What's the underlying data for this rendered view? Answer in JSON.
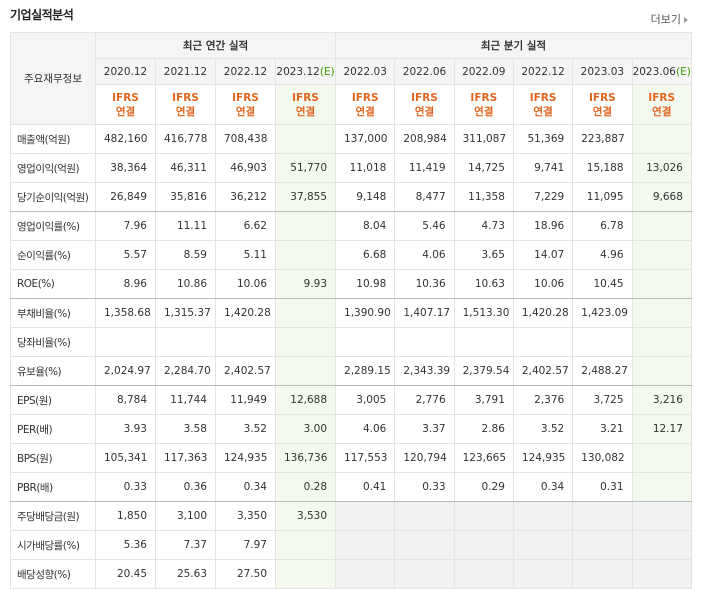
{
  "header": {
    "title": "기업실적분석",
    "more": "더보기"
  },
  "table": {
    "corner": "주요재무정보",
    "groups": [
      "최근 연간 실적",
      "최근 분기 실적"
    ],
    "columns": [
      {
        "date": "2020.12"
      },
      {
        "date": "2021.12"
      },
      {
        "date": "2022.12"
      },
      {
        "date": "2023.12",
        "est": "(E)"
      },
      {
        "date": "2022.03"
      },
      {
        "date": "2022.06"
      },
      {
        "date": "2022.09"
      },
      {
        "date": "2022.12"
      },
      {
        "date": "2023.03"
      },
      {
        "date": "2023.06",
        "est": "(E)"
      }
    ],
    "standard": [
      {
        "std": "IFRS",
        "basis": "연결"
      },
      {
        "std": "IFRS",
        "basis": "연결"
      },
      {
        "std": "IFRS",
        "basis": "연결"
      },
      {
        "std": "IFRS",
        "basis": "연결"
      },
      {
        "std": "IFRS",
        "basis": "연결"
      },
      {
        "std": "IFRS",
        "basis": "연결"
      },
      {
        "std": "IFRS",
        "basis": "연결"
      },
      {
        "std": "IFRS",
        "basis": "연결"
      },
      {
        "std": "IFRS",
        "basis": "연결"
      },
      {
        "std": "IFRS",
        "basis": "연결"
      }
    ],
    "rows": [
      {
        "label": "매출액(억원)",
        "cells": [
          "482,160",
          "416,778",
          "708,438",
          null,
          "137,000",
          "208,984",
          "311,087",
          "51,369",
          "223,887",
          null
        ]
      },
      {
        "label": "영업이익(억원)",
        "cells": [
          "38,364",
          "46,311",
          "46,903",
          "51,770",
          "11,018",
          "11,419",
          "14,725",
          "9,741",
          "15,188",
          "13,026"
        ]
      },
      {
        "label": "당기순이익(억원)",
        "cells": [
          "26,849",
          "35,816",
          "36,212",
          "37,855",
          "9,148",
          "8,477",
          "11,358",
          "7,229",
          "11,095",
          "9,668"
        ]
      },
      {
        "label": "영업이익률(%)",
        "cells": [
          "7.96",
          "11.11",
          "6.62",
          null,
          "8.04",
          "5.46",
          "4.73",
          "18.96",
          "6.78",
          null
        ]
      },
      {
        "label": "순이익률(%)",
        "cells": [
          "5.57",
          "8.59",
          "5.11",
          null,
          "6.68",
          "4.06",
          "3.65",
          "14.07",
          "4.96",
          null
        ]
      },
      {
        "label": "ROE(%)",
        "cells": [
          "8.96",
          "10.86",
          "10.06",
          "9.93",
          "10.98",
          "10.36",
          "10.63",
          "10.06",
          "10.45",
          null
        ]
      },
      {
        "label": "부채비율(%)",
        "cells": [
          "1,358.68",
          "1,315.37",
          "1,420.28",
          null,
          "1,390.90",
          "1,407.17",
          "1,513.30",
          "1,420.28",
          "1,423.09",
          null
        ]
      },
      {
        "label": "당좌비율(%)",
        "cells": [
          null,
          null,
          null,
          null,
          null,
          null,
          null,
          null,
          null,
          null
        ]
      },
      {
        "label": "유보율(%)",
        "cells": [
          "2,024.97",
          "2,284.70",
          "2,402.57",
          null,
          "2,289.15",
          "2,343.39",
          "2,379.54",
          "2,402.57",
          "2,488.27",
          null
        ]
      },
      {
        "label": "EPS(원)",
        "cells": [
          "8,784",
          "11,744",
          "11,949",
          "12,688",
          "3,005",
          "2,776",
          "3,791",
          "2,376",
          "3,725",
          "3,216"
        ]
      },
      {
        "label": "PER(배)",
        "cells": [
          "3.93",
          "3.58",
          "3.52",
          "3.00",
          "4.06",
          "3.37",
          "2.86",
          "3.52",
          "3.21",
          "12.17"
        ]
      },
      {
        "label": "BPS(원)",
        "cells": [
          "105,341",
          "117,363",
          "124,935",
          "136,736",
          "117,553",
          "120,794",
          "123,665",
          "124,935",
          "130,082",
          null
        ]
      },
      {
        "label": "PBR(배)",
        "cells": [
          "0.33",
          "0.36",
          "0.34",
          "0.28",
          "0.41",
          "0.33",
          "0.29",
          "0.34",
          "0.31",
          null
        ]
      },
      {
        "label": "주당배당금(원)",
        "cells": [
          "1,850",
          "3,100",
          "3,350",
          "3,530"
        ]
      },
      {
        "label": "시가배당률(%)",
        "cells": [
          "5.36",
          "7.37",
          "7.97",
          null
        ]
      },
      {
        "label": "배당성향(%)",
        "cells": [
          "20.45",
          "25.63",
          "27.50",
          null
        ]
      }
    ]
  }
}
